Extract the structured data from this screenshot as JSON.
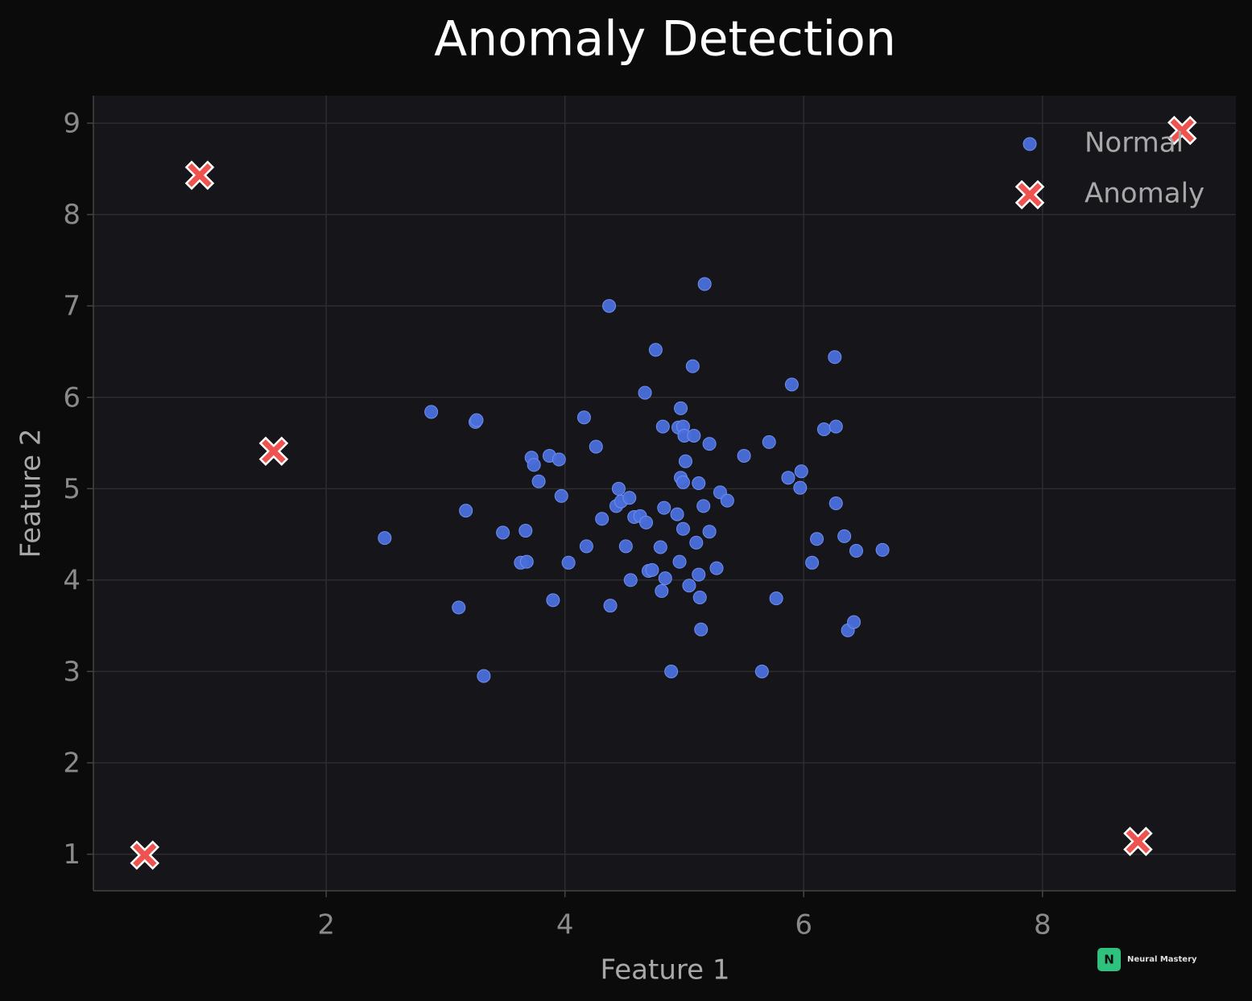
{
  "chart_data": {
    "type": "scatter",
    "title": "Anomaly Detection",
    "x_label": "Feature 1",
    "y_label": "Feature 2",
    "xlim": [
      0.05,
      9.62
    ],
    "ylim": [
      0.6,
      9.3
    ],
    "xticks": [
      2,
      4,
      6,
      8
    ],
    "yticks": [
      1,
      2,
      3,
      4,
      5,
      6,
      7,
      8,
      9
    ],
    "grid": true,
    "legend": "upper right",
    "series": [
      {
        "name": "Normal",
        "color": "#4a6fdc",
        "marker": "o",
        "x": [
          2.49,
          2.88,
          3.25,
          3.26,
          3.17,
          3.11,
          3.32,
          3.48,
          3.67,
          3.63,
          3.68,
          3.72,
          3.74,
          3.78,
          3.87,
          3.95,
          3.97,
          3.9,
          4.03,
          4.18,
          4.16,
          4.26,
          4.31,
          4.37,
          4.38,
          4.43,
          4.45,
          4.47,
          4.51,
          4.54,
          4.55,
          4.58,
          4.63,
          4.67,
          4.68,
          4.7,
          4.73,
          4.76,
          4.8,
          4.81,
          4.82,
          4.83,
          4.84,
          4.89,
          4.94,
          4.95,
          4.96,
          4.97,
          4.97,
          4.99,
          4.99,
          4.99,
          5.0,
          5.01,
          5.04,
          5.07,
          5.08,
          5.1,
          5.12,
          5.12,
          5.13,
          5.14,
          5.16,
          5.17,
          5.21,
          5.21,
          5.27,
          5.3,
          5.36,
          5.5,
          5.65,
          5.71,
          5.77,
          5.87,
          5.9,
          5.97,
          5.98,
          6.07,
          6.11,
          6.17,
          6.26,
          6.27,
          6.27,
          6.34,
          6.37,
          6.42,
          6.44,
          6.66
        ],
        "values": [
          4.46,
          5.84,
          5.73,
          5.75,
          4.76,
          3.7,
          2.95,
          4.52,
          4.54,
          4.19,
          4.2,
          5.34,
          5.26,
          5.08,
          5.36,
          5.32,
          4.92,
          3.78,
          4.19,
          4.37,
          5.78,
          5.46,
          4.67,
          7.0,
          3.72,
          4.81,
          5.0,
          4.86,
          4.37,
          4.9,
          4.0,
          4.69,
          4.7,
          6.05,
          4.63,
          4.1,
          4.11,
          6.52,
          4.36,
          3.88,
          5.68,
          4.79,
          4.02,
          3.0,
          4.72,
          5.67,
          4.2,
          5.12,
          5.88,
          5.68,
          5.07,
          4.56,
          5.58,
          5.3,
          3.94,
          6.34,
          5.58,
          4.41,
          4.06,
          5.06,
          3.81,
          3.46,
          4.81,
          7.24,
          4.53,
          5.49,
          4.13,
          4.96,
          4.87,
          5.36,
          3.0,
          5.51,
          3.8,
          5.12,
          6.14,
          5.01,
          5.19,
          4.19,
          4.45,
          5.65,
          6.44,
          5.68,
          4.84,
          4.48,
          3.45,
          3.54,
          4.32,
          4.33
        ]
      },
      {
        "name": "Anomaly",
        "color": "#ef5350",
        "marker": "X",
        "x": [
          0.94,
          1.56,
          0.48,
          9.17,
          8.8
        ],
        "values": [
          8.43,
          5.41,
          0.99,
          8.92,
          1.14
        ]
      }
    ]
  },
  "watermark": {
    "badge": "N",
    "text": "Neural Mastery"
  }
}
